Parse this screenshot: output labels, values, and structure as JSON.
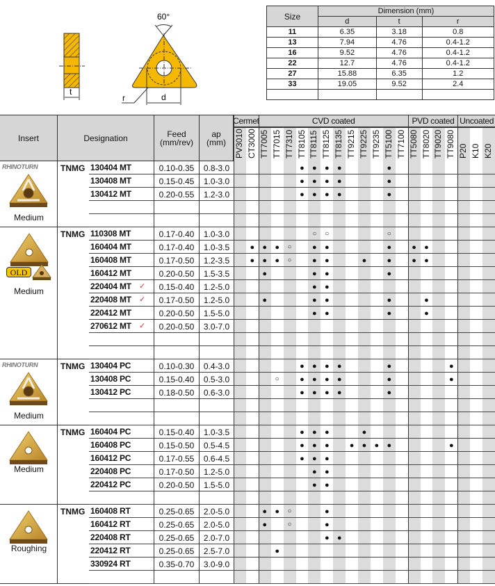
{
  "diagram": {
    "angle_label": "60°",
    "t_label": "t",
    "r_label": "r",
    "d_label": "d",
    "fill_color": "#f5b800"
  },
  "dimension_table": {
    "size_header": "Size",
    "dimension_header": "Dimension (mm)",
    "columns": [
      "d",
      "t",
      "r"
    ],
    "rows": [
      {
        "size": "11",
        "d": "6.35",
        "t": "3.18",
        "r": "0.8"
      },
      {
        "size": "13",
        "d": "7.94",
        "t": "4.76",
        "r": "0.4-1.2"
      },
      {
        "size": "16",
        "d": "9.52",
        "t": "4.76",
        "r": "0.4-1.2"
      },
      {
        "size": "22",
        "d": "12.7",
        "t": "4.76",
        "r": "0.4-1.2"
      },
      {
        "size": "27",
        "d": "15.88",
        "t": "6.35",
        "r": "1.2"
      },
      {
        "size": "33",
        "d": "19.05",
        "t": "9.52",
        "r": "2.4"
      }
    ]
  },
  "main_table": {
    "headers": {
      "insert": "Insert",
      "designation": "Designation",
      "feed": "Feed\n(mm/rev)",
      "ap": "ap\n(mm)"
    },
    "grade_groups": [
      {
        "label": "Cermet",
        "grades": [
          "PV3010",
          "CT3000"
        ]
      },
      {
        "label": "CVD coated",
        "grades": [
          "TT7005",
          "TT7015",
          "TT7310",
          "TT8105",
          "TT8115",
          "TT8125",
          "TT8135",
          "TT9215",
          "TT9225",
          "TT9235",
          "TT5100",
          "TT7100"
        ]
      },
      {
        "label": "PVD coated",
        "grades": [
          "TT5080",
          "TT8020",
          "TT9020",
          "TT9080"
        ]
      },
      {
        "label": "Uncoated",
        "grades": [
          "P20",
          "K10",
          "K20"
        ]
      }
    ],
    "symbols": {
      "recommended": "●",
      "optional": "○",
      "check": "✓"
    },
    "check_color": "#e0303a",
    "groups": [
      {
        "logo": "RHINOTURN",
        "label": "Medium",
        "prefix": "TNMG",
        "blank_rows": 2,
        "rows": [
          {
            "code": "130404 MT",
            "feed": "0.10-0.35",
            "ap": "0.8-3.0",
            "marks": {
              "TT8105": "●",
              "TT8115": "●",
              "TT8125": "●",
              "TT8135": "●",
              "TT5100": "●"
            }
          },
          {
            "code": "130408 MT",
            "feed": "0.15-0.45",
            "ap": "1.0-3.0",
            "marks": {
              "TT8105": "●",
              "TT8115": "●",
              "TT8125": "●",
              "TT8135": "●",
              "TT5100": "●"
            }
          },
          {
            "code": "130412 MT",
            "feed": "0.20-0.55",
            "ap": "1.2-3.0",
            "marks": {
              "TT8105": "●",
              "TT8115": "●",
              "TT8125": "●",
              "TT8135": "●",
              "TT5100": "●"
            }
          }
        ]
      },
      {
        "badge": "OLD",
        "label": "Medium",
        "prefix": "TNMG",
        "blank_rows": 2,
        "rows": [
          {
            "code": "110308 MT",
            "feed": "0.17-0.40",
            "ap": "1.0-3.0",
            "marks": {
              "TT8115": "○",
              "TT8125": "○",
              "TT5100": "○"
            }
          },
          {
            "code": "160404 MT",
            "feed": "0.17-0.40",
            "ap": "1.0-3.5",
            "marks": {
              "CT3000": "●",
              "TT7005": "●",
              "TT7015": "●",
              "TT7310": "○",
              "TT8115": "●",
              "TT8125": "●",
              "TT5100": "●",
              "TT5080": "●",
              "TT8020": "●"
            }
          },
          {
            "code": "160408 MT",
            "feed": "0.17-0.50",
            "ap": "1.2-3.5",
            "marks": {
              "CT3000": "●",
              "TT7005": "●",
              "TT7015": "●",
              "TT7310": "○",
              "TT8115": "●",
              "TT8125": "●",
              "TT9225": "●",
              "TT5100": "●",
              "TT5080": "●",
              "TT8020": "●"
            }
          },
          {
            "code": "160412 MT",
            "feed": "0.20-0.50",
            "ap": "1.5-3.5",
            "marks": {
              "TT7005": "●",
              "TT8115": "●",
              "TT8125": "●",
              "TT5100": "●"
            }
          },
          {
            "code": "220404 MT",
            "check": true,
            "feed": "0.15-0.40",
            "ap": "1.2-5.0",
            "marks": {
              "TT8115": "●",
              "TT8125": "●"
            }
          },
          {
            "code": "220408 MT",
            "check": true,
            "feed": "0.17-0.50",
            "ap": "1.2-5.0",
            "marks": {
              "TT7005": "●",
              "TT8115": "●",
              "TT8125": "●",
              "TT5100": "●",
              "TT8020": "●"
            }
          },
          {
            "code": "220412 MT",
            "feed": "0.20-0.50",
            "ap": "1.5-5.0",
            "marks": {
              "TT8115": "●",
              "TT8125": "●",
              "TT5100": "●",
              "TT8020": "●"
            }
          },
          {
            "code": "270612 MT",
            "check": true,
            "feed": "0.20-0.50",
            "ap": "3.0-7.0",
            "marks": {}
          }
        ]
      },
      {
        "logo": "RHINOTURN",
        "label": "Medium",
        "prefix": "TNMG",
        "blank_rows": 2,
        "rows": [
          {
            "code": "130404 PC",
            "feed": "0.10-0.30",
            "ap": "0.4-3.0",
            "marks": {
              "TT8105": "●",
              "TT8115": "●",
              "TT8125": "●",
              "TT8135": "●",
              "TT5100": "●",
              "TT9080": "●"
            }
          },
          {
            "code": "130408 PC",
            "feed": "0.15-0.40",
            "ap": "0.5-3.0",
            "marks": {
              "TT7015": "○",
              "TT8105": "●",
              "TT8115": "●",
              "TT8125": "●",
              "TT8135": "●",
              "TT5100": "●",
              "TT9080": "●"
            }
          },
          {
            "code": "130412 PC",
            "feed": "0.18-0.50",
            "ap": "0.6-3.0",
            "marks": {
              "TT8105": "●",
              "TT8115": "●",
              "TT8125": "●",
              "TT8135": "●",
              "TT5100": "●"
            }
          }
        ]
      },
      {
        "label": "Medium",
        "prefix": "TNMG",
        "blank_rows": 1,
        "rows": [
          {
            "code": "160404 PC",
            "feed": "0.15-0.40",
            "ap": "1.0-3.5",
            "marks": {
              "TT8105": "●",
              "TT8115": "●",
              "TT8125": "●",
              "TT9225": "●"
            }
          },
          {
            "code": "160408 PC",
            "feed": "0.15-0.50",
            "ap": "0.5-4.5",
            "marks": {
              "TT8105": "●",
              "TT8115": "●",
              "TT8125": "●",
              "TT9215": "●",
              "TT9225": "●",
              "TT9235": "●",
              "TT5100": "●",
              "TT9080": "●"
            }
          },
          {
            "code": "160412 PC",
            "feed": "0.17-0.55",
            "ap": "0.6-4.5",
            "marks": {
              "TT8105": "●",
              "TT8115": "●",
              "TT8125": "●"
            }
          },
          {
            "code": "220408 PC",
            "feed": "0.17-0.50",
            "ap": "1.2-5.0",
            "marks": {
              "TT8115": "●",
              "TT8125": "●"
            }
          },
          {
            "code": "220412 PC",
            "feed": "0.20-0.50",
            "ap": "1.5-5.0",
            "marks": {
              "TT8115": "●",
              "TT8125": "●"
            }
          }
        ]
      },
      {
        "label": "Roughing",
        "prefix": "TNMG",
        "blank_rows": 1,
        "rows": [
          {
            "code": "160408 RT",
            "feed": "0.25-0.65",
            "ap": "2.0-5.0",
            "marks": {
              "TT7005": "●",
              "TT7015": "●",
              "TT7310": "○",
              "TT8125": "●"
            }
          },
          {
            "code": "160412 RT",
            "feed": "0.25-0.65",
            "ap": "2.0-5.0",
            "marks": {
              "TT7005": "●",
              "TT7310": "○",
              "TT8125": "●"
            }
          },
          {
            "code": "220408 RT",
            "feed": "0.25-0.65",
            "ap": "2.0-7.0",
            "marks": {
              "TT8125": "●",
              "TT8135": "●"
            }
          },
          {
            "code": "220412 RT",
            "feed": "0.25-0.65",
            "ap": "2.5-7.0",
            "marks": {
              "TT7015": "●"
            }
          },
          {
            "code": "330924 RT",
            "feed": "0.35-0.70",
            "ap": "3.0-9.0",
            "marks": {}
          }
        ]
      }
    ]
  }
}
